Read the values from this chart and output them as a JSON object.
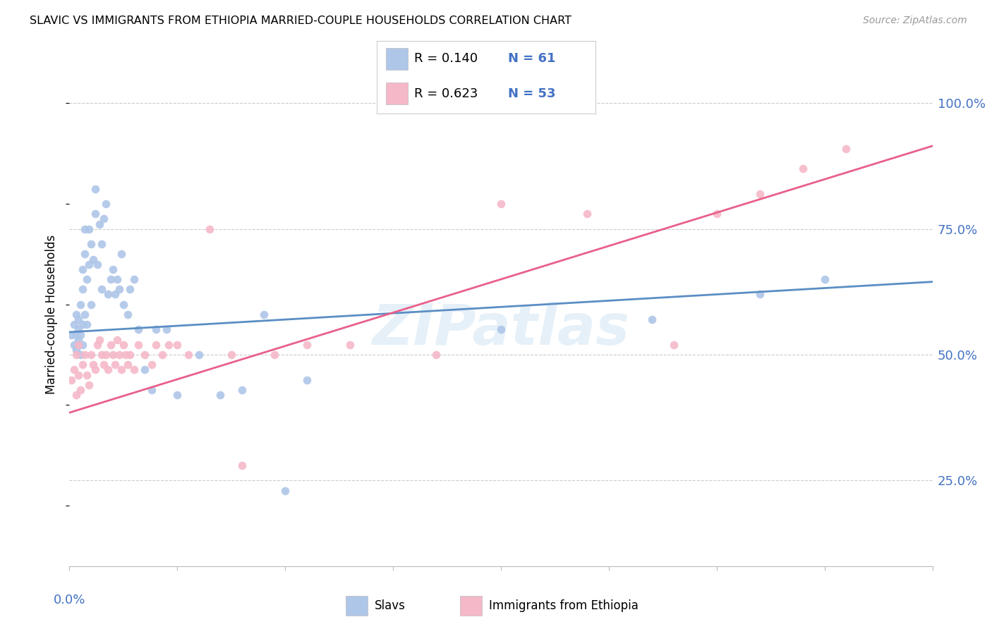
{
  "title": "SLAVIC VS IMMIGRANTS FROM ETHIOPIA MARRIED-COUPLE HOUSEHOLDS CORRELATION CHART",
  "source": "Source: ZipAtlas.com",
  "ylabel": "Married-couple Households",
  "ytick_labels": [
    "100.0%",
    "75.0%",
    "50.0%",
    "25.0%"
  ],
  "ytick_positions": [
    1.0,
    0.75,
    0.5,
    0.25
  ],
  "xlim": [
    0.0,
    0.4
  ],
  "ylim": [
    0.08,
    1.08
  ],
  "slavs_color": "#aec6e8",
  "ethiopia_color": "#f5b8c8",
  "trendline_slavs_color": "#5b8ec4",
  "trendline_ethiopia_color": "#e8608a",
  "watermark": "ZIPatlas",
  "slavs_x": [
    0.001,
    0.002,
    0.002,
    0.003,
    0.003,
    0.003,
    0.004,
    0.004,
    0.004,
    0.005,
    0.005,
    0.005,
    0.006,
    0.006,
    0.006,
    0.006,
    0.007,
    0.007,
    0.007,
    0.008,
    0.008,
    0.009,
    0.009,
    0.01,
    0.01,
    0.011,
    0.012,
    0.012,
    0.013,
    0.014,
    0.015,
    0.015,
    0.016,
    0.017,
    0.018,
    0.019,
    0.02,
    0.021,
    0.022,
    0.023,
    0.024,
    0.025,
    0.027,
    0.028,
    0.03,
    0.032,
    0.035,
    0.038,
    0.04,
    0.045,
    0.05,
    0.06,
    0.07,
    0.08,
    0.09,
    0.1,
    0.11,
    0.2,
    0.27,
    0.32,
    0.35
  ],
  "slavs_y": [
    0.54,
    0.56,
    0.52,
    0.54,
    0.51,
    0.58,
    0.53,
    0.55,
    0.57,
    0.5,
    0.54,
    0.6,
    0.52,
    0.56,
    0.63,
    0.67,
    0.58,
    0.7,
    0.75,
    0.56,
    0.65,
    0.68,
    0.75,
    0.6,
    0.72,
    0.69,
    0.78,
    0.83,
    0.68,
    0.76,
    0.63,
    0.72,
    0.77,
    0.8,
    0.62,
    0.65,
    0.67,
    0.62,
    0.65,
    0.63,
    0.7,
    0.6,
    0.58,
    0.63,
    0.65,
    0.55,
    0.47,
    0.43,
    0.55,
    0.55,
    0.42,
    0.5,
    0.42,
    0.43,
    0.58,
    0.23,
    0.45,
    0.55,
    0.57,
    0.62,
    0.65
  ],
  "ethiopia_x": [
    0.001,
    0.002,
    0.003,
    0.003,
    0.004,
    0.004,
    0.005,
    0.006,
    0.007,
    0.008,
    0.009,
    0.01,
    0.011,
    0.012,
    0.013,
    0.014,
    0.015,
    0.016,
    0.017,
    0.018,
    0.019,
    0.02,
    0.021,
    0.022,
    0.023,
    0.024,
    0.025,
    0.026,
    0.027,
    0.028,
    0.03,
    0.032,
    0.035,
    0.038,
    0.04,
    0.043,
    0.046,
    0.05,
    0.055,
    0.065,
    0.075,
    0.08,
    0.095,
    0.11,
    0.13,
    0.17,
    0.2,
    0.24,
    0.28,
    0.3,
    0.32,
    0.34,
    0.36
  ],
  "ethiopia_y": [
    0.45,
    0.47,
    0.42,
    0.5,
    0.46,
    0.52,
    0.43,
    0.48,
    0.5,
    0.46,
    0.44,
    0.5,
    0.48,
    0.47,
    0.52,
    0.53,
    0.5,
    0.48,
    0.5,
    0.47,
    0.52,
    0.5,
    0.48,
    0.53,
    0.5,
    0.47,
    0.52,
    0.5,
    0.48,
    0.5,
    0.47,
    0.52,
    0.5,
    0.48,
    0.52,
    0.5,
    0.52,
    0.52,
    0.5,
    0.75,
    0.5,
    0.28,
    0.5,
    0.52,
    0.52,
    0.5,
    0.8,
    0.78,
    0.52,
    0.78,
    0.82,
    0.87,
    0.91
  ],
  "slavs_R": 0.14,
  "slavs_N": 61,
  "ethiopia_R": 0.623,
  "ethiopia_N": 53,
  "trendline_slavs_x0": 0.0,
  "trendline_slavs_x1": 0.4,
  "trendline_slavs_y0": 0.545,
  "trendline_slavs_y1": 0.645,
  "trendline_eth_x0": 0.0,
  "trendline_eth_x1": 0.4,
  "trendline_eth_y0": 0.385,
  "trendline_eth_y1": 0.915
}
